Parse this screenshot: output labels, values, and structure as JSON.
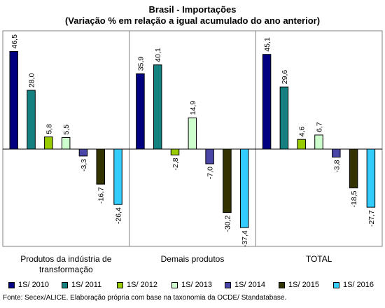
{
  "title_line1": "Brasil - Importações",
  "title_line2": "(Variação % em relação a igual acumulado do ano anterior)",
  "source": "Fonte: Secex/ALICE. Elaboração própria com base na taxonomia da OCDE/ Standatabase.",
  "chart_data": {
    "type": "bar",
    "title": "Brasil - Importações",
    "subtitle": "(Variação % em relação a igual acumulado do ano anterior)",
    "xlabel": "",
    "ylabel": "",
    "categories": [
      "Produtos da indústria de transformação",
      "Demais produtos",
      "TOTAL"
    ],
    "category_labels": [
      [
        "Produtos da indústria de",
        "transformação"
      ],
      [
        "Demais produtos"
      ],
      [
        "TOTAL"
      ]
    ],
    "series": [
      {
        "name": "1S/ 2010",
        "color": "#000080",
        "values": [
          46.5,
          35.9,
          45.1
        ],
        "labels": [
          "46,5",
          "35,9",
          "45,1"
        ]
      },
      {
        "name": "1S/ 2011",
        "color": "#148080",
        "values": [
          28.0,
          40.1,
          29.6
        ],
        "labels": [
          "28,0",
          "40,1",
          "29,6"
        ]
      },
      {
        "name": "1S/ 2012",
        "color": "#99cc00",
        "values": [
          5.8,
          -2.8,
          4.6
        ],
        "labels": [
          "5,8",
          "-2,8",
          "4,6"
        ]
      },
      {
        "name": "1S/ 2013",
        "color": "#ccffcc",
        "values": [
          5.5,
          14.9,
          6.7
        ],
        "labels": [
          "5,5",
          "14,9",
          "6,7"
        ]
      },
      {
        "name": "1S/ 2014",
        "color": "#4a46a8",
        "values": [
          -3.3,
          -7.0,
          -3.8
        ],
        "labels": [
          "-3,3",
          "-7,0",
          "-3,8"
        ]
      },
      {
        "name": "1S/ 2015",
        "color": "#333300",
        "values": [
          -16.7,
          -30.2,
          -18.5
        ],
        "labels": [
          "-16,7",
          "-30,2",
          "-18,5"
        ]
      },
      {
        "name": "1S/ 2016",
        "color": "#33ccff",
        "values": [
          -26.4,
          -37.4,
          -27.7
        ],
        "labels": [
          "-26,4",
          "-37,4",
          "-27,7"
        ]
      }
    ],
    "ylim": [
      -45,
      60
    ],
    "grid": false,
    "legend_position": "bottom"
  }
}
